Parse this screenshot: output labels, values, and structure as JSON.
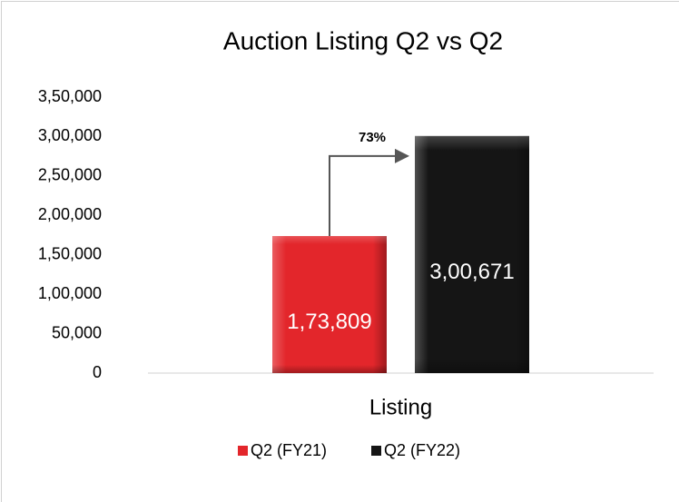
{
  "chart_data": {
    "type": "bar",
    "title": "Auction Listing Q2 vs Q2",
    "categories": [
      "Listing"
    ],
    "series": [
      {
        "name": "Q2 (FY21)",
        "color": "#e3262b",
        "values": [
          173809
        ],
        "value_labels": [
          "1,73,809"
        ]
      },
      {
        "name": "Q2 (FY22)",
        "color": "#151515",
        "values": [
          300671
        ],
        "value_labels": [
          "3,00,671"
        ]
      }
    ],
    "annotation": "73%",
    "ylim": [
      0,
      350000
    ],
    "yticks": [
      0,
      {
        "value": 50000,
        "label": "50,000"
      },
      {
        "value": 100000,
        "label": "1,00,000"
      },
      {
        "value": 150000,
        "label": "1,50,000"
      },
      {
        "value": 200000,
        "label": "2,00,000"
      },
      {
        "value": 250000,
        "label": "2,50,000"
      },
      {
        "value": 300000,
        "label": "3,00,000"
      },
      {
        "value": 350000,
        "label": "3,50,000"
      }
    ],
    "grid": false,
    "legend": "bottom"
  }
}
